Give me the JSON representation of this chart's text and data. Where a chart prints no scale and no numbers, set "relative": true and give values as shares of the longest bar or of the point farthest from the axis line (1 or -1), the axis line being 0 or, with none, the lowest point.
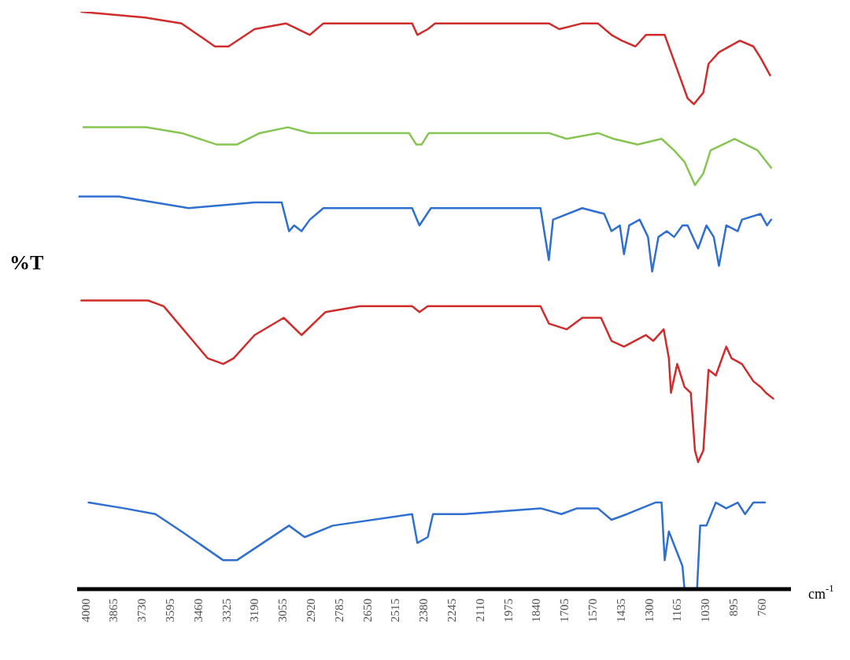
{
  "chart_data": {
    "type": "line",
    "relative": true,
    "ylabel": "%T",
    "xlabel": "cm$^{-1}$",
    "xlim": [
      4040,
      620
    ],
    "xticks": [
      4000,
      3865,
      3730,
      3595,
      3460,
      3325,
      3190,
      3055,
      2920,
      2785,
      2650,
      2515,
      2380,
      2245,
      2110,
      1975,
      1840,
      1705,
      1570,
      1435,
      1300,
      1165,
      1030,
      895,
      760
    ],
    "grid": false,
    "series": [
      {
        "color": "#d02c2c",
        "x": [
          4020,
          3715,
          3540,
          3380,
          3315,
          3190,
          3040,
          2925,
          2860,
          2435,
          2410,
          2360,
          2325,
          1780,
          1730,
          1620,
          1545,
          1480,
          1430,
          1365,
          1315,
          1270,
          1225,
          1195,
          1155,
          1115,
          1085,
          1040,
          1015,
          965,
          865,
          800,
          765,
          720
        ],
        "values": [
          1.0,
          0.99,
          0.98,
          0.94,
          0.94,
          0.97,
          0.98,
          0.96,
          0.98,
          0.98,
          0.96,
          0.97,
          0.98,
          0.98,
          0.97,
          0.98,
          0.98,
          0.96,
          0.95,
          0.94,
          0.96,
          0.96,
          0.96,
          0.93,
          0.89,
          0.85,
          0.84,
          0.86,
          0.91,
          0.93,
          0.95,
          0.94,
          0.92,
          0.89
        ]
      },
      {
        "color": "#86c552",
        "x": [
          4010,
          3710,
          3540,
          3370,
          3275,
          3165,
          3030,
          2925,
          2450,
          2415,
          2390,
          2355,
          1780,
          1695,
          1545,
          1470,
          1355,
          1240,
          1180,
          1130,
          1080,
          1040,
          1005,
          890,
          780,
          715
        ],
        "values": [
          0.8,
          0.8,
          0.79,
          0.77,
          0.77,
          0.79,
          0.8,
          0.79,
          0.79,
          0.77,
          0.77,
          0.79,
          0.79,
          0.78,
          0.79,
          0.78,
          0.77,
          0.78,
          0.76,
          0.74,
          0.7,
          0.72,
          0.76,
          0.78,
          0.76,
          0.73
        ]
      },
      {
        "color": "#2f6fd0",
        "x": [
          4030,
          3840,
          3505,
          3190,
          3060,
          3025,
          3000,
          2965,
          2925,
          2860,
          2435,
          2400,
          2345,
          2185,
          1820,
          1780,
          1760,
          1620,
          1515,
          1480,
          1440,
          1420,
          1395,
          1345,
          1305,
          1285,
          1255,
          1215,
          1180,
          1140,
          1115,
          1065,
          1025,
          990,
          965,
          930,
          875,
          855,
          765,
          735,
          715
        ],
        "values": [
          0.68,
          0.68,
          0.66,
          0.67,
          0.67,
          0.62,
          0.63,
          0.62,
          0.64,
          0.66,
          0.66,
          0.63,
          0.66,
          0.66,
          0.66,
          0.57,
          0.64,
          0.66,
          0.65,
          0.62,
          0.63,
          0.58,
          0.63,
          0.64,
          0.61,
          0.55,
          0.61,
          0.62,
          0.61,
          0.63,
          0.63,
          0.59,
          0.63,
          0.61,
          0.56,
          0.63,
          0.62,
          0.64,
          0.65,
          0.63,
          0.64
        ]
      },
      {
        "color": "#d02c2c",
        "x": [
          4020,
          3765,
          3700,
          3625,
          3415,
          3340,
          3290,
          3190,
          3050,
          2965,
          2850,
          2685,
          2435,
          2400,
          2360,
          2185,
          1820,
          1780,
          1695,
          1620,
          1530,
          1480,
          1420,
          1315,
          1280,
          1230,
          1205,
          1195,
          1165,
          1130,
          1100,
          1080,
          1065,
          1040,
          1015,
          980,
          930,
          905,
          855,
          800,
          765,
          740,
          705
        ],
        "values": [
          0.5,
          0.5,
          0.5,
          0.49,
          0.4,
          0.39,
          0.4,
          0.44,
          0.47,
          0.44,
          0.48,
          0.49,
          0.49,
          0.48,
          0.49,
          0.49,
          0.49,
          0.46,
          0.45,
          0.47,
          0.47,
          0.43,
          0.42,
          0.44,
          0.43,
          0.45,
          0.4,
          0.34,
          0.39,
          0.35,
          0.34,
          0.24,
          0.22,
          0.24,
          0.38,
          0.37,
          0.42,
          0.4,
          0.39,
          0.36,
          0.35,
          0.34,
          0.33
        ]
      },
      {
        "color": "#2f6fd0",
        "x": [
          3985,
          3815,
          3665,
          3540,
          3340,
          3275,
          3025,
          2950,
          2815,
          2435,
          2410,
          2360,
          2335,
          2185,
          1820,
          1720,
          1645,
          1545,
          1480,
          1405,
          1270,
          1240,
          1225,
          1205,
          1140,
          1130,
          1070,
          1055,
          1025,
          980,
          930,
          875,
          840,
          800,
          745
        ],
        "values": [
          0.15,
          0.14,
          0.13,
          0.1,
          0.05,
          0.05,
          0.11,
          0.09,
          0.11,
          0.13,
          0.08,
          0.09,
          0.13,
          0.13,
          0.14,
          0.13,
          0.14,
          0.14,
          0.12,
          0.13,
          0.15,
          0.15,
          0.05,
          0.1,
          0.04,
          0,
          0,
          0.11,
          0.11,
          0.15,
          0.14,
          0.15,
          0.13,
          0.15,
          0.15
        ]
      }
    ]
  }
}
